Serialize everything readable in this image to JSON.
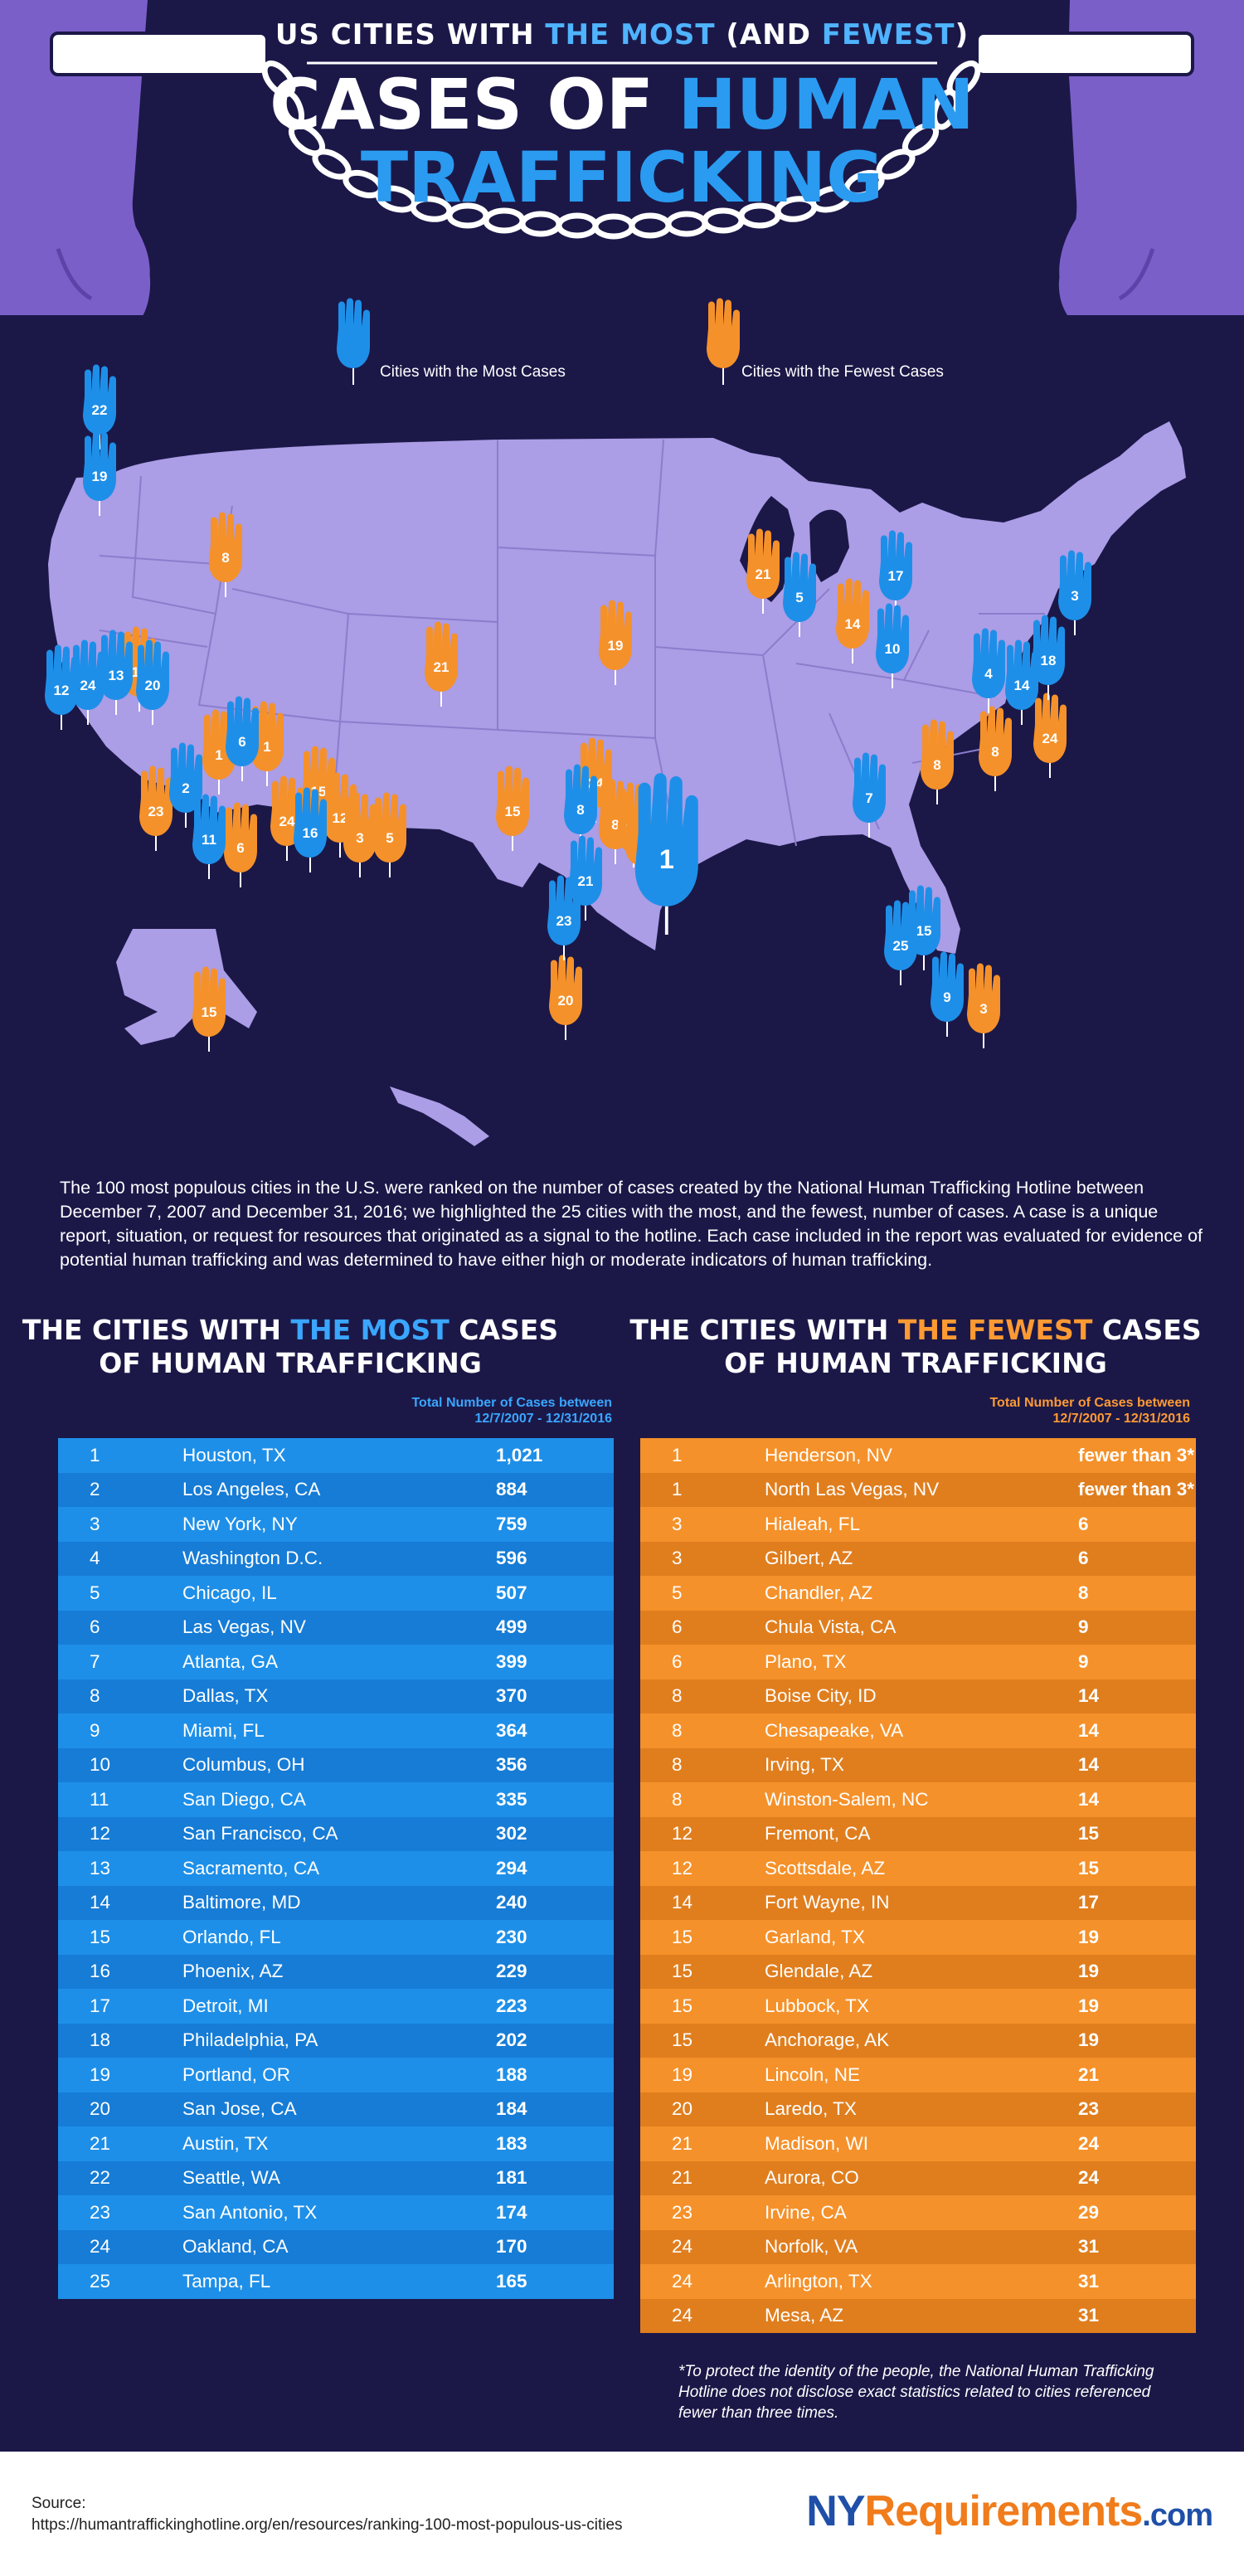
{
  "header": {
    "kicker_pre": "US CITIES WITH ",
    "kicker_hl1": "THE MOST",
    "kicker_mid": " (AND ",
    "kicker_hl2": "FEWEST",
    "kicker_post": ")",
    "title_line1_a": "CASES OF ",
    "title_line1_b": "HUMAN",
    "title_line2": "TRAFFICKING"
  },
  "legend": {
    "most": "Cities with the Most Cases",
    "fewest": "Cities with the Fewest Cases"
  },
  "colors": {
    "background": "#1b1848",
    "map_fill": "#ab9de6",
    "blue_accent": "#1e8fe8",
    "orange_accent": "#f5912a",
    "hand_purple": "#7b5fc9"
  },
  "map_markers": {
    "most": [
      {
        "rank": "22",
        "city": "Seattle, WA"
      },
      {
        "rank": "19",
        "city": "Portland, OR"
      },
      {
        "rank": "12",
        "city": "San Francisco, CA"
      },
      {
        "rank": "24",
        "city": "Oakland, CA"
      },
      {
        "rank": "13",
        "city": "Sacramento, CA"
      },
      {
        "rank": "20",
        "city": "San Jose, CA"
      },
      {
        "rank": "2",
        "city": "Los Angeles, CA"
      },
      {
        "rank": "11",
        "city": "San Diego, CA"
      },
      {
        "rank": "6",
        "city": "Las Vegas, NV"
      },
      {
        "rank": "16",
        "city": "Phoenix, AZ"
      },
      {
        "rank": "8",
        "city": "Dallas, TX"
      },
      {
        "rank": "1",
        "city": "Houston, TX"
      },
      {
        "rank": "21",
        "city": "Austin, TX"
      },
      {
        "rank": "23",
        "city": "San Antonio, TX"
      },
      {
        "rank": "5",
        "city": "Chicago, IL"
      },
      {
        "rank": "17",
        "city": "Detroit, MI"
      },
      {
        "rank": "10",
        "city": "Columbus, OH"
      },
      {
        "rank": "7",
        "city": "Atlanta, GA"
      },
      {
        "rank": "3",
        "city": "New York, NY"
      },
      {
        "rank": "18",
        "city": "Philadelphia, PA"
      },
      {
        "rank": "14",
        "city": "Baltimore, MD"
      },
      {
        "rank": "4",
        "city": "Washington D.C."
      },
      {
        "rank": "15",
        "city": "Orlando, FL"
      },
      {
        "rank": "25",
        "city": "Tampa, FL"
      },
      {
        "rank": "9",
        "city": "Miami, FL"
      }
    ],
    "fewest": [
      {
        "rank": "8",
        "city": "Boise City, ID"
      },
      {
        "rank": "12",
        "city": "Fremont, CA"
      },
      {
        "rank": "1",
        "city": "Henderson, NV"
      },
      {
        "rank": "1",
        "city": "North Las Vegas, NV"
      },
      {
        "rank": "15",
        "city": "Glendale, AZ"
      },
      {
        "rank": "23",
        "city": "Irvine, CA"
      },
      {
        "rank": "6",
        "city": "Chula Vista, CA"
      },
      {
        "rank": "24",
        "city": "Mesa, AZ"
      },
      {
        "rank": "12",
        "city": "Scottsdale, AZ"
      },
      {
        "rank": "3",
        "city": "Gilbert, AZ"
      },
      {
        "rank": "5",
        "city": "Chandler, AZ"
      },
      {
        "rank": "21",
        "city": "Aurora, CO"
      },
      {
        "rank": "15",
        "city": "Lubbock, TX"
      },
      {
        "rank": "19",
        "city": "Lincoln, NE"
      },
      {
        "rank": "24",
        "city": "Arlington, TX"
      },
      {
        "rank": "8",
        "city": "Irving, TX"
      },
      {
        "rank": "15",
        "city": "Garland, TX"
      },
      {
        "rank": "6",
        "city": "Plano, TX"
      },
      {
        "rank": "20",
        "city": "Laredo, TX"
      },
      {
        "rank": "21",
        "city": "Madison, WI"
      },
      {
        "rank": "14",
        "city": "Fort Wayne, IN"
      },
      {
        "rank": "8",
        "city": "Winston-Salem, NC"
      },
      {
        "rank": "24",
        "city": "Norfolk, VA"
      },
      {
        "rank": "8",
        "city": "Chesapeake, VA"
      },
      {
        "rank": "3",
        "city": "Hialeah, FL"
      },
      {
        "rank": "15",
        "city": "Anchorage, AK"
      }
    ]
  },
  "intro": "The 100 most populous cities in the U.S. were ranked on the number of cases created by the National Human Trafficking Hotline between December 7, 2007 and December 31, 2016; we highlighted the 25 cities with the most, and the fewest, number of cases. A case is a unique report, situation, or request for resources that originated as a signal to the hotline. Each case included in the report was evaluated for evidence of potential human trafficking and was determined to have either high or moderate indicators of human trafficking.",
  "most_section": {
    "title_pre": "THE CITIES WITH ",
    "title_hl": "THE MOST",
    "title_post": " CASES",
    "title_line2": "OF HUMAN TRAFFICKING",
    "total_label_1": "Total Number of Cases between",
    "total_label_2": "12/7/2007 - 12/31/2016"
  },
  "fewest_section": {
    "title_pre": "THE CITIES WITH ",
    "title_hl": "THE FEWEST",
    "title_post": " CASES",
    "title_line2": "OF HUMAN TRAFFICKING",
    "total_label_1": "Total Number of Cases between",
    "total_label_2": "12/7/2007 - 12/31/2016"
  },
  "chart_data": [
    {
      "type": "table",
      "title": "THE CITIES WITH THE MOST CASES OF HUMAN TRAFFICKING",
      "columns": [
        "Rank",
        "City",
        "Total Number of Cases between 12/7/2007 - 12/31/2016"
      ],
      "rows": [
        {
          "rank": "1",
          "city": "Houston, TX",
          "value": "1,021"
        },
        {
          "rank": "2",
          "city": "Los Angeles, CA",
          "value": "884"
        },
        {
          "rank": "3",
          "city": "New York, NY",
          "value": "759"
        },
        {
          "rank": "4",
          "city": "Washington D.C.",
          "value": "596"
        },
        {
          "rank": "5",
          "city": "Chicago, IL",
          "value": "507"
        },
        {
          "rank": "6",
          "city": "Las Vegas, NV",
          "value": "499"
        },
        {
          "rank": "7",
          "city": "Atlanta, GA",
          "value": "399"
        },
        {
          "rank": "8",
          "city": "Dallas, TX",
          "value": "370"
        },
        {
          "rank": "9",
          "city": "Miami, FL",
          "value": "364"
        },
        {
          "rank": "10",
          "city": "Columbus, OH",
          "value": "356"
        },
        {
          "rank": "11",
          "city": "San Diego, CA",
          "value": "335"
        },
        {
          "rank": "12",
          "city": "San Francisco, CA",
          "value": "302"
        },
        {
          "rank": "13",
          "city": "Sacramento, CA",
          "value": "294"
        },
        {
          "rank": "14",
          "city": "Baltimore, MD",
          "value": "240"
        },
        {
          "rank": "15",
          "city": "Orlando, FL",
          "value": "230"
        },
        {
          "rank": "16",
          "city": "Phoenix, AZ",
          "value": "229"
        },
        {
          "rank": "17",
          "city": "Detroit, MI",
          "value": "223"
        },
        {
          "rank": "18",
          "city": "Philadelphia, PA",
          "value": "202"
        },
        {
          "rank": "19",
          "city": "Portland, OR",
          "value": "188"
        },
        {
          "rank": "20",
          "city": "San Jose, CA",
          "value": "184"
        },
        {
          "rank": "21",
          "city": "Austin, TX",
          "value": "183"
        },
        {
          "rank": "22",
          "city": "Seattle, WA",
          "value": "181"
        },
        {
          "rank": "23",
          "city": "San Antonio, TX",
          "value": "174"
        },
        {
          "rank": "24",
          "city": "Oakland, CA",
          "value": "170"
        },
        {
          "rank": "25",
          "city": "Tampa, FL",
          "value": "165"
        }
      ]
    },
    {
      "type": "table",
      "title": "THE CITIES WITH THE FEWEST CASES OF HUMAN TRAFFICKING",
      "columns": [
        "Rank",
        "City",
        "Total Number of Cases between 12/7/2007 - 12/31/2016"
      ],
      "rows": [
        {
          "rank": "1",
          "city": "Henderson, NV",
          "value": "fewer than 3*"
        },
        {
          "rank": "1",
          "city": "North Las Vegas, NV",
          "value": "fewer than 3*"
        },
        {
          "rank": "3",
          "city": "Hialeah, FL",
          "value": "6"
        },
        {
          "rank": "3",
          "city": "Gilbert, AZ",
          "value": "6"
        },
        {
          "rank": "5",
          "city": "Chandler, AZ",
          "value": "8"
        },
        {
          "rank": "6",
          "city": "Chula Vista, CA",
          "value": "9"
        },
        {
          "rank": "6",
          "city": "Plano, TX",
          "value": "9"
        },
        {
          "rank": "8",
          "city": "Boise City, ID",
          "value": "14"
        },
        {
          "rank": "8",
          "city": "Chesapeake, VA",
          "value": "14"
        },
        {
          "rank": "8",
          "city": "Irving, TX",
          "value": "14"
        },
        {
          "rank": "8",
          "city": "Winston-Salem, NC",
          "value": "14"
        },
        {
          "rank": "12",
          "city": "Fremont, CA",
          "value": "15"
        },
        {
          "rank": "12",
          "city": "Scottsdale, AZ",
          "value": "15"
        },
        {
          "rank": "14",
          "city": "Fort Wayne, IN",
          "value": "17"
        },
        {
          "rank": "15",
          "city": "Garland, TX",
          "value": "19"
        },
        {
          "rank": "15",
          "city": "Glendale, AZ",
          "value": "19"
        },
        {
          "rank": "15",
          "city": "Lubbock, TX",
          "value": "19"
        },
        {
          "rank": "15",
          "city": "Anchorage, AK",
          "value": "19"
        },
        {
          "rank": "19",
          "city": "Lincoln, NE",
          "value": "21"
        },
        {
          "rank": "20",
          "city": "Laredo, TX",
          "value": "23"
        },
        {
          "rank": "21",
          "city": "Madison, WI",
          "value": "24"
        },
        {
          "rank": "21",
          "city": "Aurora, CO",
          "value": "24"
        },
        {
          "rank": "23",
          "city": "Irvine, CA",
          "value": "29"
        },
        {
          "rank": "24",
          "city": "Norfolk, VA",
          "value": "31"
        },
        {
          "rank": "24",
          "city": "Arlington, TX",
          "value": "31"
        },
        {
          "rank": "24",
          "city": "Mesa, AZ",
          "value": "31"
        }
      ]
    }
  ],
  "footnote": "*To protect the identity of the people, the National Human Trafficking Hotline does not disclose exact statistics related to cities referenced fewer than three times.",
  "footer": {
    "source_label": "Source:",
    "source_url": "https://humantraffickinghotline.org/en/resources/ranking-100-most-populous-us-cities",
    "brand_ny": "NY",
    "brand_req": "Requirements",
    "brand_dom": ".com"
  }
}
